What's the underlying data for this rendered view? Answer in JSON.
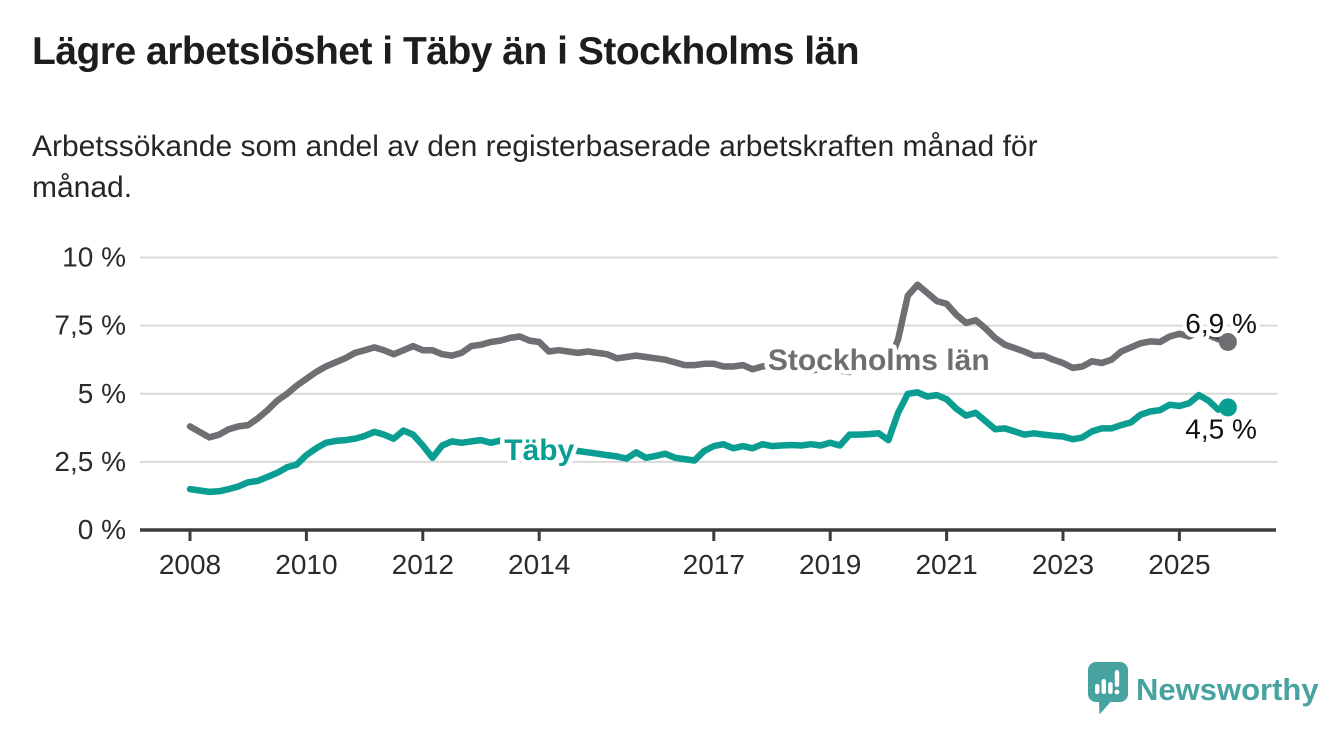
{
  "page": {
    "title": "Lägre arbetslöshet i Täby än i Stockholms län",
    "subtitle": "Arbetssökande som andel av den registerbaserade arbetskraften månad för\nmånad."
  },
  "branding": {
    "logo_text": "Newsworthy",
    "logo_color": "#47a3a0",
    "logo_icon": "speech-bubble-bar-chart-icon"
  },
  "chart_data": {
    "type": "line",
    "unit": "%",
    "grid": true,
    "ylim": [
      0,
      10
    ],
    "x_start_year": 2008,
    "x_step_months": 2,
    "y_ticks": [
      {
        "value": 0,
        "label": "0 %"
      },
      {
        "value": 2.5,
        "label": "2,5 %"
      },
      {
        "value": 5,
        "label": "5 %"
      },
      {
        "value": 7.5,
        "label": "7,5 %"
      },
      {
        "value": 10,
        "label": "10 %"
      }
    ],
    "x_ticks": [
      {
        "year": 2008,
        "label": "2008"
      },
      {
        "year": 2010,
        "label": "2010"
      },
      {
        "year": 2012,
        "label": "2012"
      },
      {
        "year": 2014,
        "label": "2014"
      },
      {
        "year": 2017,
        "label": "2017"
      },
      {
        "year": 2019,
        "label": "2019"
      },
      {
        "year": 2021,
        "label": "2021"
      },
      {
        "year": 2023,
        "label": "2023"
      },
      {
        "year": 2025,
        "label": "2025"
      }
    ],
    "series": [
      {
        "name": "Stockholms län",
        "color": "#6e6e73",
        "end_label": "6,9 %",
        "end_value": 6.9,
        "end_label_side": "above",
        "label_pos": {
          "year": 2017.93,
          "value": 6.27
        },
        "values": [
          3.8,
          3.6,
          3.4,
          3.5,
          3.7,
          3.8,
          3.85,
          4.1,
          4.4,
          4.75,
          5.0,
          5.3,
          5.55,
          5.8,
          6.0,
          6.15,
          6.3,
          6.5,
          6.6,
          6.7,
          6.6,
          6.45,
          6.6,
          6.75,
          6.6,
          6.6,
          6.45,
          6.4,
          6.5,
          6.75,
          6.8,
          6.9,
          6.95,
          7.05,
          7.1,
          6.95,
          6.9,
          6.55,
          6.6,
          6.55,
          6.5,
          6.55,
          6.5,
          6.45,
          6.3,
          6.35,
          6.4,
          6.35,
          6.3,
          6.25,
          6.15,
          6.05,
          6.05,
          6.1,
          6.1,
          6.0,
          6.0,
          6.05,
          5.9,
          6.0,
          6.05,
          6.0,
          5.95,
          5.9,
          5.85,
          5.9,
          5.9,
          5.85,
          5.8,
          5.9,
          5.95,
          6.0,
          6.05,
          7.0,
          8.6,
          9.0,
          8.7,
          8.4,
          8.3,
          7.9,
          7.6,
          7.7,
          7.4,
          7.05,
          6.8,
          6.68,
          6.55,
          6.4,
          6.4,
          6.25,
          6.13,
          5.95,
          6.0,
          6.19,
          6.13,
          6.25,
          6.55,
          6.7,
          6.85,
          6.92,
          6.9,
          7.1,
          7.2,
          7.1,
          7.28,
          7.15,
          7.0,
          6.9
        ]
      },
      {
        "name": "Täby",
        "color": "#0a9e92",
        "end_label": "4,5 %",
        "end_value": 4.5,
        "end_label_side": "below",
        "label_pos": {
          "year": 2013.4,
          "value": 2.97
        },
        "values": [
          1.5,
          1.45,
          1.4,
          1.42,
          1.5,
          1.6,
          1.75,
          1.8,
          1.95,
          2.1,
          2.3,
          2.4,
          2.75,
          3.0,
          3.2,
          3.27,
          3.3,
          3.35,
          3.45,
          3.6,
          3.5,
          3.35,
          3.65,
          3.5,
          3.1,
          2.65,
          3.1,
          3.25,
          3.2,
          3.25,
          3.3,
          3.2,
          3.28,
          3.25,
          3.3,
          3.25,
          3.2,
          3.1,
          3.0,
          2.95,
          2.9,
          2.85,
          2.8,
          2.75,
          2.7,
          2.62,
          2.85,
          2.65,
          2.72,
          2.8,
          2.65,
          2.6,
          2.55,
          2.9,
          3.08,
          3.15,
          3.0,
          3.08,
          3.0,
          3.15,
          3.08,
          3.1,
          3.12,
          3.1,
          3.15,
          3.1,
          3.2,
          3.1,
          3.5,
          3.5,
          3.52,
          3.55,
          3.3,
          4.3,
          5.0,
          5.05,
          4.9,
          4.95,
          4.8,
          4.45,
          4.2,
          4.3,
          4.0,
          3.7,
          3.73,
          3.62,
          3.5,
          3.55,
          3.5,
          3.46,
          3.43,
          3.33,
          3.4,
          3.62,
          3.73,
          3.73,
          3.85,
          3.95,
          4.23,
          4.35,
          4.4,
          4.6,
          4.55,
          4.65,
          4.95,
          4.75,
          4.42,
          4.5
        ]
      }
    ]
  }
}
